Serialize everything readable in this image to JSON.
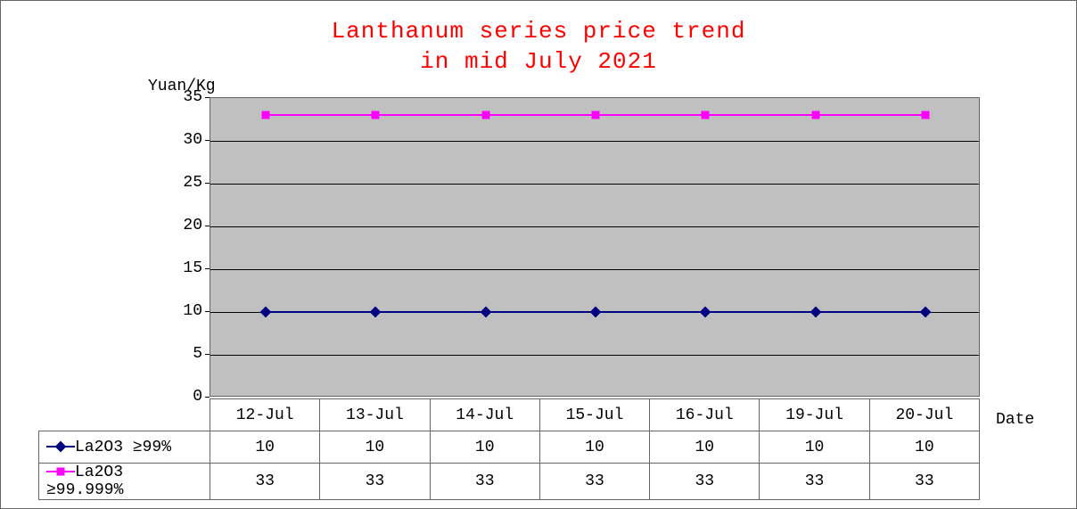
{
  "chart": {
    "title_line1": "Lanthanum series price trend",
    "title_line2": "in mid July 2021",
    "title_color": "#ff0000",
    "title_fontsize": 26,
    "y_label": "Yuan/Kg",
    "x_label": "Date",
    "background_color": "#ffffff",
    "plot_background": "#c0c0c0",
    "grid_color": "#000000",
    "border_color": "#666666",
    "ylim": [
      0,
      35
    ],
    "ytick_step": 5,
    "yticks": [
      0,
      5,
      10,
      15,
      20,
      25,
      30,
      35
    ],
    "categories": [
      "12-Jul",
      "13-Jul",
      "14-Jul",
      "15-Jul",
      "16-Jul",
      "19-Jul",
      "20-Jul"
    ],
    "label_fontsize": 18,
    "series": [
      {
        "name": "La2O3 ≥99%",
        "color": "#000080",
        "marker": "diamond",
        "marker_color": "#000080",
        "values": [
          10,
          10,
          10,
          10,
          10,
          10,
          10
        ]
      },
      {
        "name": "La2O3 ≥99.999%",
        "color": "#ff00ff",
        "marker": "square",
        "marker_color": "#ff00ff",
        "values": [
          33,
          33,
          33,
          33,
          33,
          33,
          33
        ]
      }
    ]
  }
}
